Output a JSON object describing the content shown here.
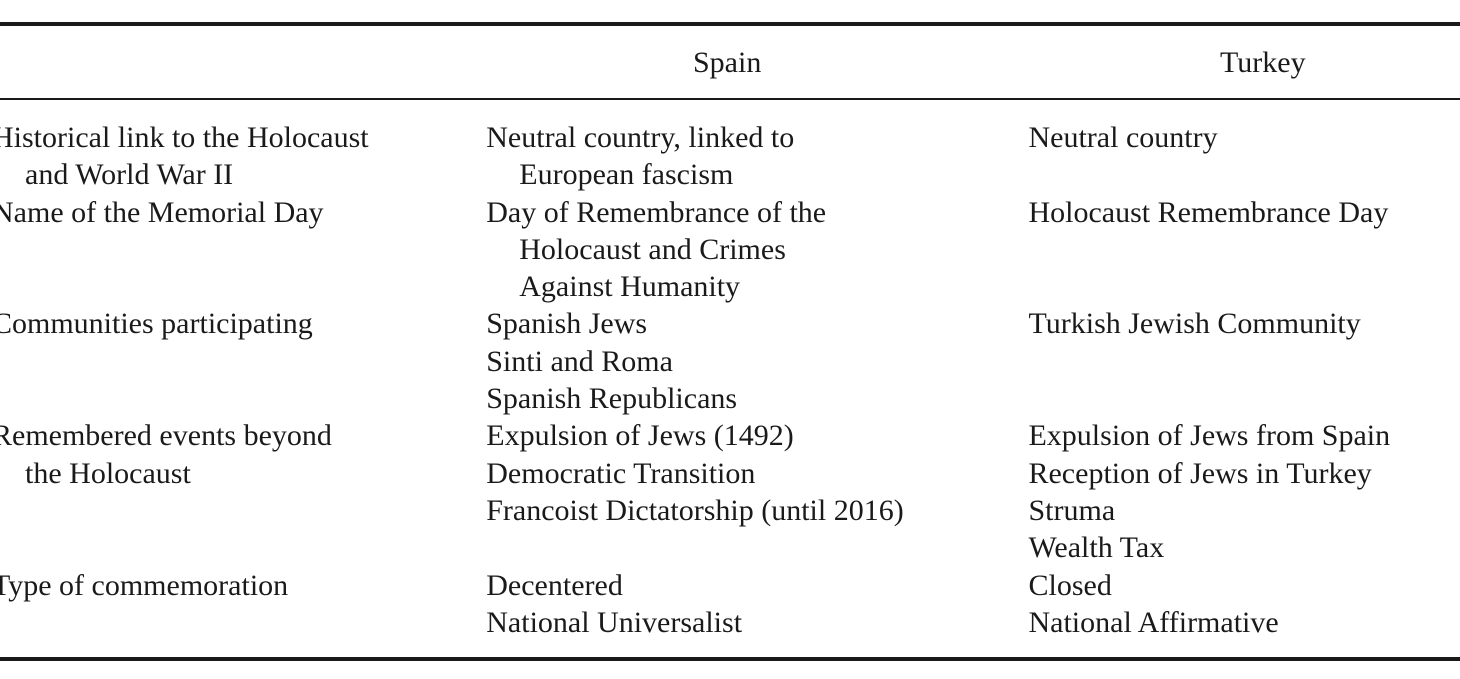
{
  "table": {
    "columns": [
      "",
      "Spain",
      "Turkey"
    ],
    "rows": [
      {
        "label": [
          "Historical link to the Holocaust",
          "and World War II"
        ],
        "spain": [
          [
            "Neutral country, linked to",
            "European fascism"
          ]
        ],
        "turkey": [
          [
            "Neutral country"
          ]
        ]
      },
      {
        "label": [
          "Name of the Memorial Day"
        ],
        "spain": [
          [
            "Day of Remembrance of the",
            "Holocaust and Crimes",
            "Against Humanity"
          ]
        ],
        "turkey": [
          [
            "Holocaust Remembrance Day"
          ]
        ]
      },
      {
        "label": [
          "Communities participating"
        ],
        "spain": [
          [
            "Spanish Jews"
          ],
          [
            "Sinti and Roma"
          ],
          [
            "Spanish Republicans"
          ]
        ],
        "turkey": [
          [
            "Turkish Jewish Community"
          ]
        ]
      },
      {
        "label": [
          "Remembered events beyond",
          "the Holocaust"
        ],
        "spain": [
          [
            "Expulsion of Jews (1492)"
          ],
          [
            "Democratic Transition"
          ],
          [
            "Francoist Dictatorship (until 2016)"
          ]
        ],
        "turkey": [
          [
            "Expulsion of Jews from Spain"
          ],
          [
            "Reception of Jews in Turkey"
          ],
          [
            "Struma"
          ],
          [
            "Wealth Tax"
          ]
        ]
      },
      {
        "label": [
          "Type of commemoration"
        ],
        "spain": [
          [
            "Decentered"
          ],
          [
            "National Universalist"
          ]
        ],
        "turkey": [
          [
            "Closed"
          ],
          [
            "National Affirmative"
          ]
        ]
      }
    ]
  }
}
